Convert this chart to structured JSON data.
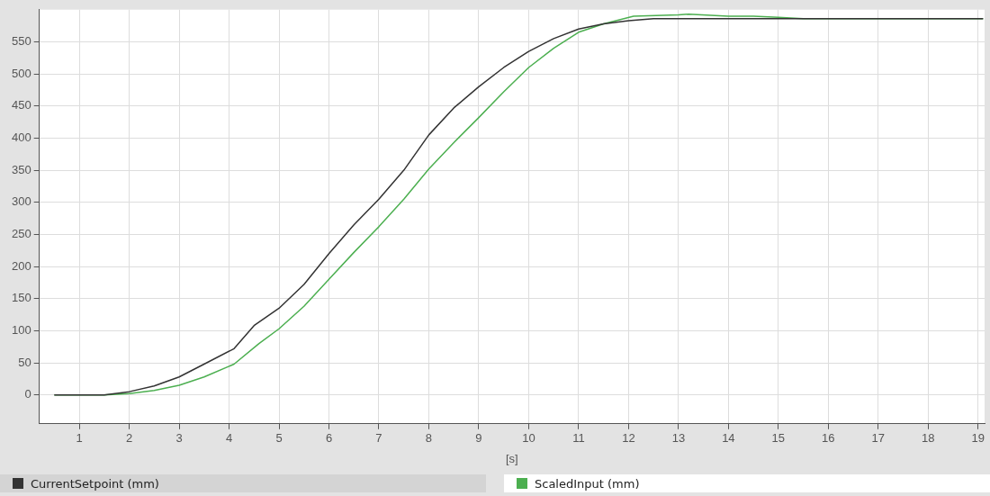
{
  "chart_data": {
    "type": "line",
    "xlabel": "[s]",
    "xlim": [
      0.2,
      19.13
    ],
    "xticks": [
      1,
      2,
      3,
      4,
      5,
      6,
      7,
      8,
      9,
      10,
      11,
      12,
      13,
      14,
      15,
      16,
      17,
      18,
      19
    ],
    "ylim": [
      -45,
      600
    ],
    "yticks": [
      0,
      50,
      100,
      150,
      200,
      250,
      300,
      350,
      400,
      450,
      500,
      550
    ],
    "grid": true,
    "legend": "bottom",
    "marker": "none",
    "line_style": "solid",
    "series": [
      {
        "name": "CurrentSetpoint (mm)",
        "color": "#333333",
        "x": [
          0.5,
          1.5,
          2,
          2.5,
          3,
          3.5,
          4.1,
          4.5,
          5,
          5.5,
          6,
          6.5,
          7,
          7.5,
          8,
          8.5,
          9,
          9.5,
          10,
          10.5,
          11,
          11.5,
          12,
          12.5,
          19.1
        ],
        "values": [
          0,
          0,
          5,
          14,
          28,
          48,
          72,
          108,
          135,
          172,
          220,
          265,
          305,
          350,
          405,
          447,
          480,
          510,
          535,
          555,
          570,
          578,
          583,
          586,
          586
        ]
      },
      {
        "name": "ScaledInput (mm)",
        "color": "#4caf50",
        "x": [
          0.5,
          1.5,
          2,
          2.5,
          3,
          3.5,
          4.1,
          4.6,
          5,
          5.5,
          6,
          6.5,
          7,
          7.5,
          8,
          8.5,
          9,
          9.5,
          10,
          10.5,
          11,
          11.5,
          12.1,
          13,
          13.2,
          14,
          14.5,
          15,
          15.5,
          19.1
        ],
        "values": [
          0,
          0,
          2,
          7,
          15,
          28,
          48,
          80,
          103,
          138,
          180,
          222,
          262,
          305,
          352,
          393,
          432,
          472,
          510,
          540,
          565,
          578,
          590,
          592,
          593,
          590,
          590,
          588,
          586,
          586
        ]
      }
    ]
  }
}
